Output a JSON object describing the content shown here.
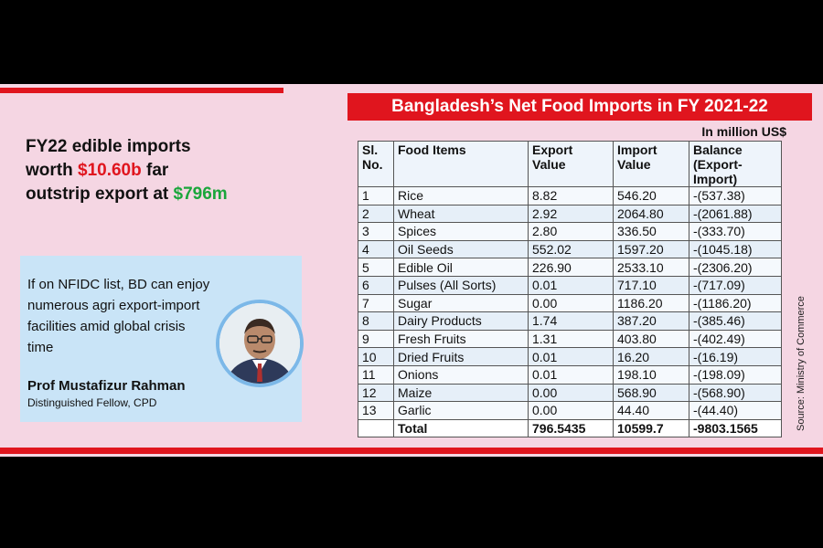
{
  "title": "Bangladesh’s Net Food Imports in FY 2021-22",
  "unit": "In million US$",
  "headline": {
    "line1": "FY22 edible imports",
    "line2_prefix": "worth ",
    "line2_value": "$10.60b",
    "line2_suffix": " far",
    "line3_prefix": "outstrip export at ",
    "line3_value": "$796m"
  },
  "quote": {
    "text": "If on NFIDC list, BD can enjoy numerous agri export-import facilities amid global crisis time",
    "name": "Prof Mustafizur Rahman",
    "role": "Distinguished Fellow, CPD"
  },
  "source": "Source: Ministry of Commerce",
  "colors": {
    "red": "#e0151e",
    "green": "#1aa63b",
    "pink": "#f5d6e3",
    "blue": "#c9e4f7"
  },
  "table": {
    "headers": [
      "Sl. No.",
      "Food Items",
      "Export Value",
      "Import Value",
      "Balance (Export-Import)"
    ],
    "rows": [
      [
        "1",
        "Rice",
        "8.82",
        "546.20",
        "-(537.38)"
      ],
      [
        "2",
        "Wheat",
        "2.92",
        "2064.80",
        "-(2061.88)"
      ],
      [
        "3",
        "Spices",
        "2.80",
        "336.50",
        "-(333.70)"
      ],
      [
        "4",
        "Oil Seeds",
        "552.02",
        "1597.20",
        "-(1045.18)"
      ],
      [
        "5",
        "Edible Oil",
        "226.90",
        "2533.10",
        "-(2306.20)"
      ],
      [
        "6",
        "Pulses (All Sorts)",
        "0.01",
        "717.10",
        "-(717.09)"
      ],
      [
        "7",
        "Sugar",
        "0.00",
        "1186.20",
        "-(1186.20)"
      ],
      [
        "8",
        "Dairy Products",
        "1.74",
        "387.20",
        "-(385.46)"
      ],
      [
        "9",
        "Fresh Fruits",
        "1.31",
        "403.80",
        "-(402.49)"
      ],
      [
        "10",
        "Dried Fruits",
        "0.01",
        "16.20",
        "-(16.19)"
      ],
      [
        "11",
        "Onions",
        "0.01",
        "198.10",
        "-(198.09)"
      ],
      [
        "12",
        "Maize",
        "0.00",
        "568.90",
        "-(568.90)"
      ],
      [
        "13",
        "Garlic",
        "0.00",
        "44.40",
        "-(44.40)"
      ]
    ],
    "total": [
      "",
      "Total",
      "796.5435",
      "10599.7",
      "-9803.1565"
    ]
  }
}
